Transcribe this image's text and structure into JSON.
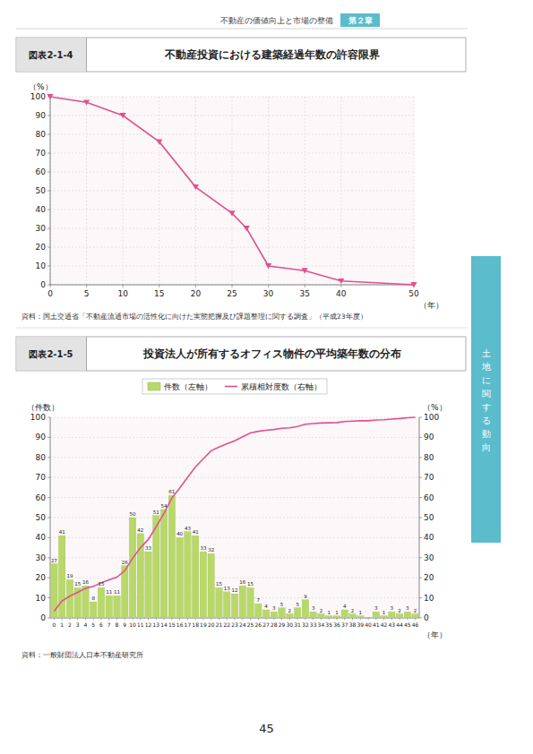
{
  "page": {
    "header": "不動産の価値向上と市場の整備",
    "chapter": "第２章",
    "sidebar": "土地に関する動向",
    "page_number": "45",
    "color": "#5bbccc"
  },
  "chart_data": [
    {
      "type": "line",
      "title": "不動産投資における建築経過年数の許容限界",
      "annotations": [
        "図表2-1-4",
        "資料：国土交通省「不動産流通市場の活性化に向けた実態把握及び課題整理に関する調査」（平成23年度）"
      ],
      "x": [
        0,
        5,
        10,
        15,
        20,
        25,
        27,
        30,
        35,
        40,
        50
      ],
      "values": [
        100,
        97,
        90,
        76,
        52,
        38,
        30,
        10,
        7.5,
        2,
        0
      ],
      "color": "#e05090",
      "marker": "triangle-down",
      "xlabel": "（年）",
      "ylabel": "（%）",
      "xlim": [
        0,
        50
      ],
      "ylim": [
        0,
        100
      ],
      "xticks": [
        0,
        5,
        10,
        15,
        20,
        25,
        30,
        35,
        40,
        50
      ],
      "yticks": [
        0,
        10,
        20,
        30,
        40,
        50,
        60,
        70,
        80,
        90,
        100
      ],
      "grid": true
    },
    {
      "type": "bar",
      "title": "投資法人が所有するオフィス物件の平均築年数の分布",
      "annotations": [
        "図表2-1-5",
        "資料：一般財団法人日本不動産研究所"
      ],
      "categories": [
        "0",
        "1",
        "2",
        "3",
        "4",
        "5",
        "6",
        "7",
        "8",
        "9",
        "10",
        "11",
        "12",
        "13",
        "14",
        "15",
        "16",
        "17",
        "18",
        "19",
        "20",
        "21",
        "22",
        "23",
        "24",
        "25",
        "26",
        "27",
        "28",
        "29",
        "30",
        "31",
        "32",
        "33",
        "34",
        "35",
        "36",
        "37",
        "38",
        "39",
        "40",
        "41",
        "42",
        "43",
        "44",
        "45",
        "46"
      ],
      "series": [
        {
          "name": "件数（左軸）",
          "type": "bar",
          "color": "#b8d96a",
          "data_labels": true,
          "values": [
            27,
            41,
            19,
            15,
            16,
            8,
            15,
            11,
            11,
            26,
            50,
            42,
            33,
            51,
            54,
            61,
            40,
            43,
            41,
            33,
            32,
            15,
            13,
            12,
            16,
            15,
            7,
            4,
            3,
            5,
            2,
            5,
            9,
            3,
            2,
            1,
            1,
            4,
            2,
            1,
            0,
            3,
            1,
            3,
            2,
            3,
            2
          ]
        },
        {
          "name": "累積相対度数（右軸）",
          "type": "line",
          "axis": "y2",
          "color": "#e05090",
          "values": [
            3.36,
            8.47,
            10.83,
            12.7,
            14.69,
            15.69,
            17.56,
            18.93,
            20.3,
            23.54,
            29.76,
            34.99,
            39.1,
            45.45,
            52.18,
            59.78,
            64.76,
            70.11,
            75.22,
            79.33,
            83.31,
            85.18,
            86.8,
            88.29,
            90.29,
            92.15,
            93.03,
            93.52,
            93.9,
            94.52,
            94.77,
            95.39,
            96.51,
            96.89,
            97.14,
            97.26,
            97.38,
            97.88,
            98.13,
            98.26,
            98.26,
            98.63,
            98.75,
            99.13,
            99.38,
            99.75,
            100
          ]
        }
      ],
      "xlabel": "（年）",
      "ylabel": "（件数）",
      "y2label": "（%）",
      "ylim": [
        0,
        100
      ],
      "yticks": [
        0,
        10,
        20,
        30,
        40,
        50,
        60,
        70,
        80,
        90,
        100
      ],
      "y2lim": [
        0,
        100
      ],
      "y2ticks": [
        0,
        10,
        20,
        30,
        40,
        50,
        60,
        70,
        80,
        90,
        100
      ],
      "grid": "y",
      "legend": "top"
    }
  ]
}
